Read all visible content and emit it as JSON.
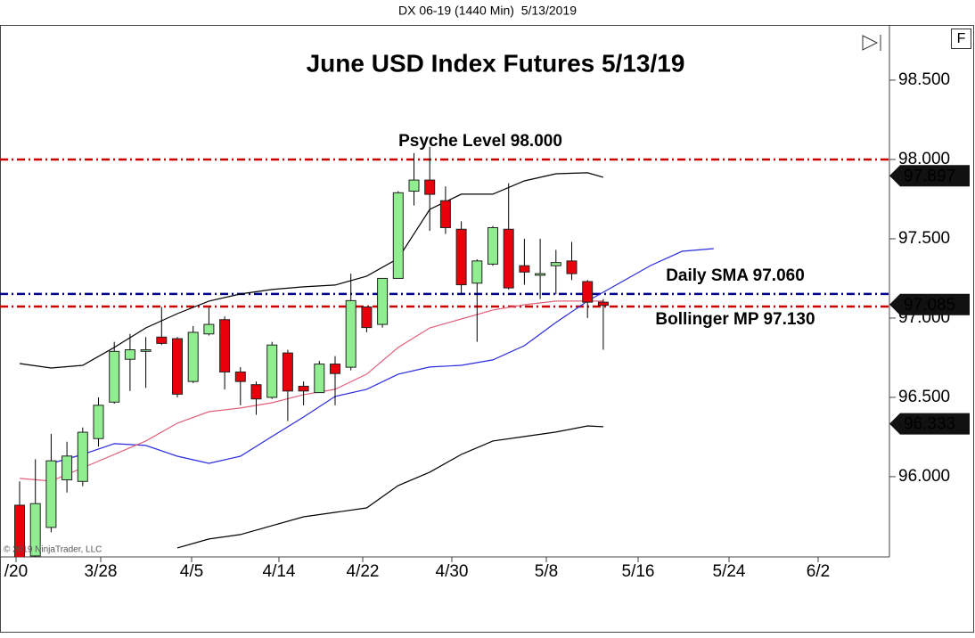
{
  "chart_data": {
    "type": "candlestick",
    "subtitle": "DX 06-19 (1440 Min)  5/13/2019",
    "title": "June USD Index Futures 5/13/19",
    "source": "© 2019 NinjaTrader, LLC",
    "panel_button": "F",
    "annotations": [
      "Psyche Level 98.000",
      "Daily SMA 97.060",
      "Bollinger MP 97.130"
    ],
    "ylim": [
      95.494,
      98.848
    ],
    "yticks": [
      {
        "value": 96,
        "label": "96.000"
      },
      {
        "value": 96.5,
        "label": "96.500"
      },
      {
        "value": 97,
        "label": "97.000"
      },
      {
        "value": 97.5,
        "label": "97.500"
      },
      {
        "value": 98,
        "label": "98.000"
      },
      {
        "value": 98.5,
        "label": "98.500"
      }
    ],
    "xlim": [
      -1.243,
      55.141
    ],
    "xticks": [
      {
        "value": -0.226,
        "label": "/20"
      },
      {
        "value": 5.141,
        "label": "3/28"
      },
      {
        "value": 10.904,
        "label": "4/5"
      },
      {
        "value": 16.441,
        "label": "4/14"
      },
      {
        "value": 21.751,
        "label": "4/22"
      },
      {
        "value": 27.401,
        "label": "4/30"
      },
      {
        "value": 33.39,
        "label": "5/8"
      },
      {
        "value": 39.209,
        "label": "5/16"
      },
      {
        "value": 44.972,
        "label": "5/24"
      },
      {
        "value": 50.621,
        "label": "6/2"
      }
    ],
    "up_color": "#90ee90",
    "down_color": "#e8000b",
    "x": [
      0,
      1,
      2,
      3,
      4,
      5,
      6,
      7,
      8,
      9,
      10,
      11,
      12,
      13,
      14,
      15,
      16,
      17,
      18,
      19,
      20,
      21,
      22,
      23,
      24,
      25,
      26,
      27,
      28,
      29,
      30,
      31,
      32,
      33,
      34,
      35,
      36,
      37
    ],
    "open": [
      95.82,
      95.5,
      95.68,
      95.98,
      95.97,
      96.24,
      96.47,
      96.74,
      96.79,
      96.88,
      96.87,
      96.6,
      96.9,
      96.99,
      96.66,
      96.58,
      96.5,
      96.78,
      96.57,
      96.53,
      96.71,
      96.69,
      97.07,
      96.96,
      97.25,
      97.8,
      97.87,
      97.74,
      97.56,
      97.22,
      97.34,
      97.56,
      97.33,
      97.27,
      97.33,
      97.36,
      97.23,
      97.1
    ],
    "high": [
      95.97,
      96.11,
      96.27,
      96.22,
      96.31,
      96.5,
      96.85,
      96.9,
      96.88,
      97.07,
      96.88,
      96.95,
      97.07,
      97.01,
      96.69,
      96.6,
      96.85,
      96.8,
      96.6,
      96.73,
      96.76,
      97.28,
      97.07,
      97.25,
      97.8,
      98.04,
      98.08,
      97.83,
      97.61,
      97.37,
      97.58,
      97.85,
      97.5,
      97.5,
      97.43,
      97.48,
      97.24,
      97.12
    ],
    "low": [
      95.45,
      95.45,
      95.65,
      95.9,
      95.94,
      96.19,
      96.46,
      96.54,
      96.56,
      96.83,
      96.5,
      96.59,
      96.89,
      96.55,
      96.45,
      96.39,
      96.49,
      96.35,
      96.45,
      96.53,
      96.45,
      96.67,
      96.91,
      96.94,
      97.25,
      97.71,
      97.55,
      97.53,
      97.15,
      96.85,
      97.33,
      97.18,
      97.21,
      97.12,
      97.15,
      97.24,
      97.0,
      96.8
    ],
    "close": [
      95.49,
      95.83,
      96.1,
      96.13,
      96.28,
      96.45,
      96.79,
      96.8,
      96.8,
      96.84,
      96.52,
      96.91,
      96.96,
      96.66,
      96.6,
      96.49,
      96.83,
      96.54,
      96.54,
      96.71,
      96.65,
      97.11,
      96.94,
      97.25,
      97.79,
      97.87,
      97.78,
      97.57,
      97.21,
      97.36,
      97.57,
      97.19,
      97.29,
      97.28,
      97.35,
      97.28,
      97.1,
      97.08
    ],
    "lines": [
      {
        "color": "#000000",
        "x": [
          0,
          2,
          4,
          6,
          8,
          10,
          12,
          14,
          16,
          18,
          20,
          22,
          24,
          26,
          28,
          30,
          32,
          34,
          36,
          37
        ],
        "values": [
          96.713,
          96.685,
          96.702,
          96.815,
          96.938,
          97.028,
          97.107,
          97.152,
          97.18,
          97.197,
          97.208,
          97.264,
          97.376,
          97.685,
          97.781,
          97.781,
          97.865,
          97.91,
          97.916,
          97.888
        ]
      },
      {
        "color": "#000000",
        "x": [
          10,
          12,
          14,
          16,
          18,
          20,
          22,
          24,
          26,
          28,
          30,
          32,
          34,
          36,
          37
        ],
        "values": [
          95.551,
          95.607,
          95.635,
          95.691,
          95.747,
          95.775,
          95.803,
          95.944,
          96.028,
          96.14,
          96.225,
          96.253,
          96.281,
          96.32,
          96.315
        ]
      },
      {
        "color": "#2a2ae0",
        "x": [
          2,
          4,
          6,
          8,
          10,
          12,
          14,
          16,
          18,
          20,
          22,
          24,
          26,
          28,
          30,
          32,
          34,
          36,
          38,
          40,
          42,
          44
        ],
        "values": [
          96.084,
          96.14,
          96.208,
          96.197,
          96.129,
          96.084,
          96.129,
          96.253,
          96.376,
          96.506,
          96.551,
          96.646,
          96.691,
          96.702,
          96.736,
          96.826,
          96.972,
          97.107,
          97.219,
          97.331,
          97.421,
          97.438
        ]
      },
      {
        "color": "#e0607a",
        "x": [
          0,
          2,
          4,
          6,
          8,
          10,
          12,
          14,
          16,
          18,
          20,
          22,
          24,
          26,
          28,
          30,
          32,
          34,
          36,
          37
        ],
        "values": [
          95.989,
          95.972,
          96.056,
          96.14,
          96.225,
          96.337,
          96.41,
          96.433,
          96.466,
          96.517,
          96.551,
          96.646,
          96.815,
          96.938,
          96.994,
          97.051,
          97.084,
          97.107,
          97.107,
          97.107
        ]
      }
    ],
    "hlines": [
      {
        "value": 98,
        "color": "#cc0000"
      },
      {
        "value": 97.152,
        "color": "#00008b"
      },
      {
        "value": 97.073,
        "color": "#cc0000"
      }
    ],
    "price_markers": [
      97.897,
      97.085,
      96.333
    ]
  }
}
